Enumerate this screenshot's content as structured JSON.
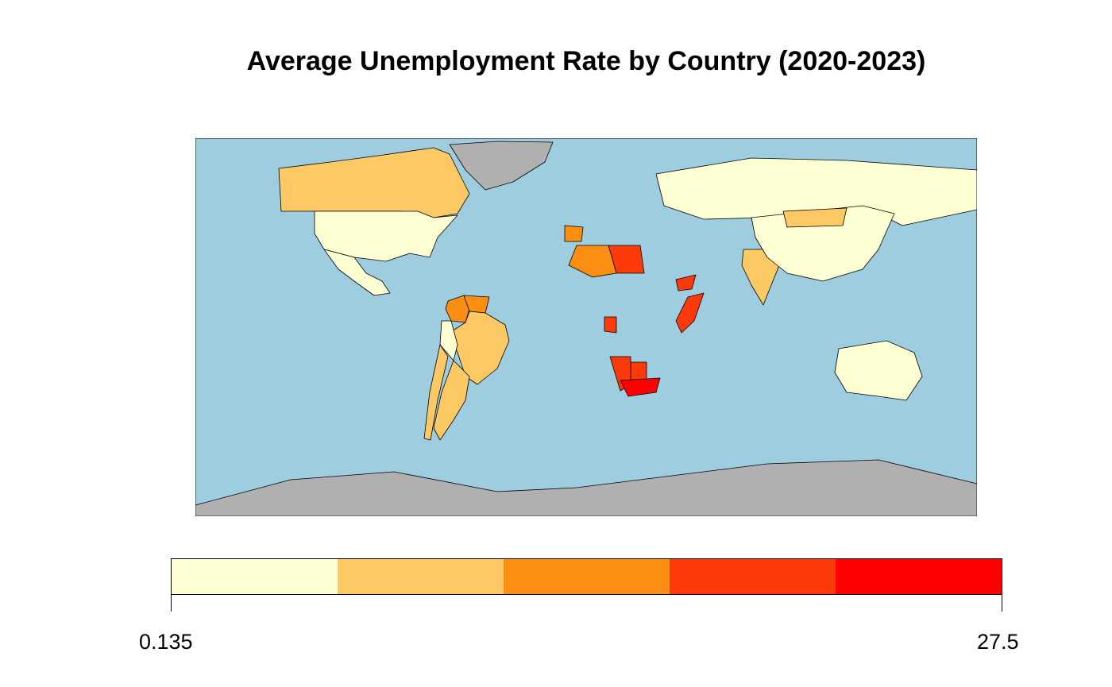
{
  "title": "Average Unemployment Rate by Country (2020-2023)",
  "map": {
    "projection": "equirectangular",
    "ocean_color": "#9ECDE0",
    "no_data_color": "#B0B0B0",
    "border_color": "#000000",
    "regions": [
      {
        "name": "Canada",
        "bin": 2
      },
      {
        "name": "United States",
        "bin": 1
      },
      {
        "name": "Mexico",
        "bin": 1
      },
      {
        "name": "Colombia",
        "bin": 3
      },
      {
        "name": "Venezuela",
        "bin": 3
      },
      {
        "name": "Brazil",
        "bin": 2
      },
      {
        "name": "Peru",
        "bin": 1
      },
      {
        "name": "Argentina",
        "bin": 2
      },
      {
        "name": "Chile",
        "bin": 2
      },
      {
        "name": "Greenland",
        "bin": null
      },
      {
        "name": "Spain",
        "bin": 3
      },
      {
        "name": "Russia",
        "bin": 1
      },
      {
        "name": "Libya",
        "bin": 4
      },
      {
        "name": "Algeria",
        "bin": 3
      },
      {
        "name": "Somalia",
        "bin": 4
      },
      {
        "name": "Yemen",
        "bin": 4
      },
      {
        "name": "Namibia",
        "bin": 4
      },
      {
        "name": "Botswana",
        "bin": 4
      },
      {
        "name": "South Africa",
        "bin": 5
      },
      {
        "name": "Gabon",
        "bin": 4
      },
      {
        "name": "India",
        "bin": 2
      },
      {
        "name": "China",
        "bin": 1
      },
      {
        "name": "Mongolia",
        "bin": 2
      },
      {
        "name": "Australia",
        "bin": 1
      },
      {
        "name": "Antarctica",
        "bin": null
      }
    ]
  },
  "legend": {
    "min_label": "0.135",
    "max_label": "27.5",
    "colors": [
      "#FFFFD4",
      "#FDC965",
      "#FB8F13",
      "#FD3A0A",
      "#FF0000"
    ]
  }
}
